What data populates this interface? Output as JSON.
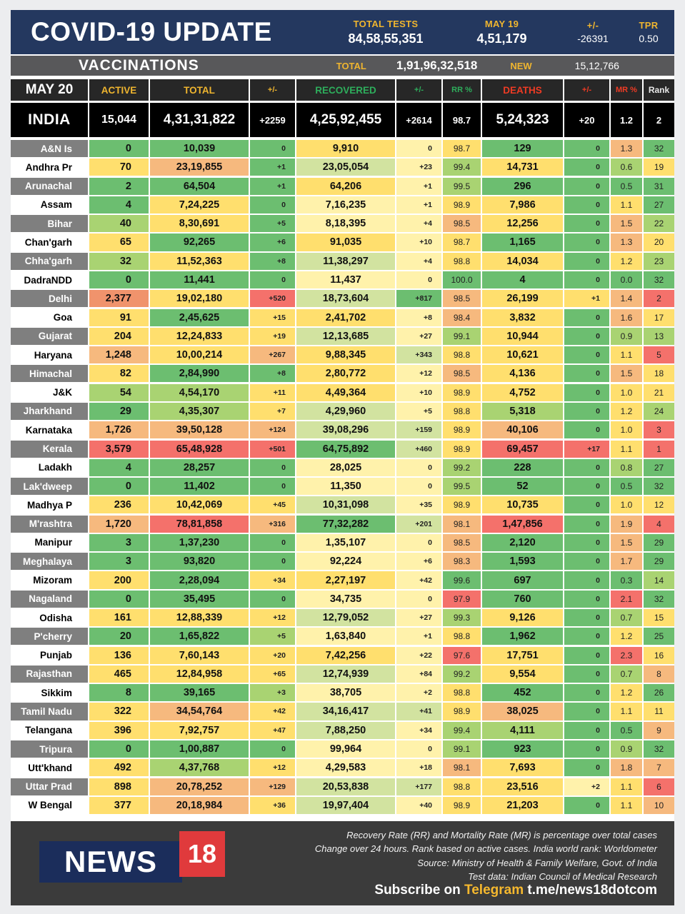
{
  "banner": {
    "title": "COVID-19 UPDATE",
    "stats": [
      {
        "label": "TOTAL TESTS",
        "value": "84,58,55,351"
      },
      {
        "label": "MAY 19",
        "value": "4,51,179"
      },
      {
        "label": "+/-",
        "value": "-26391"
      },
      {
        "label": "TPR",
        "value": "0.50"
      }
    ]
  },
  "vaccinations": {
    "title": "VACCINATIONS",
    "total_label": "TOTAL",
    "total_value": "1,91,96,32,518",
    "new_label": "NEW",
    "new_value": "15,12,766"
  },
  "chart_data": {
    "type": "table",
    "title": "COVID-19 UPDATE",
    "date_label": "MAY 20",
    "columns": [
      "MAY 20",
      "ACTIVE",
      "TOTAL",
      "+/-",
      "RECOVERED",
      "+/-",
      "RR %",
      "DEATHS",
      "+/-",
      "MR %",
      "Rank"
    ],
    "india_row": [
      "INDIA",
      "15,044",
      "4,31,31,822",
      "+2259",
      "4,25,92,455",
      "+2614",
      "98.7",
      "5,24,323",
      "+20",
      "1.2",
      "2"
    ],
    "rows": [
      [
        "A&N Is",
        "0",
        "10,039",
        "0",
        "9,910",
        "0",
        "98.7",
        "129",
        "0",
        "1.3",
        "32"
      ],
      [
        "Andhra Pr",
        "70",
        "23,19,855",
        "+1",
        "23,05,054",
        "+23",
        "99.4",
        "14,731",
        "0",
        "0.6",
        "19"
      ],
      [
        "Arunachal",
        "2",
        "64,504",
        "+1",
        "64,206",
        "+1",
        "99.5",
        "296",
        "0",
        "0.5",
        "31"
      ],
      [
        "Assam",
        "4",
        "7,24,225",
        "0",
        "7,16,235",
        "+1",
        "98.9",
        "7,986",
        "0",
        "1.1",
        "27"
      ],
      [
        "Bihar",
        "40",
        "8,30,691",
        "+5",
        "8,18,395",
        "+4",
        "98.5",
        "12,256",
        "0",
        "1.5",
        "22"
      ],
      [
        "Chan'garh",
        "65",
        "92,265",
        "+6",
        "91,035",
        "+10",
        "98.7",
        "1,165",
        "0",
        "1.3",
        "20"
      ],
      [
        "Chha'garh",
        "32",
        "11,52,363",
        "+8",
        "11,38,297",
        "+4",
        "98.8",
        "14,034",
        "0",
        "1.2",
        "23"
      ],
      [
        "DadraNDD",
        "0",
        "11,441",
        "0",
        "11,437",
        "0",
        "100.0",
        "4",
        "0",
        "0.0",
        "32"
      ],
      [
        "Delhi",
        "2,377",
        "19,02,180",
        "+520",
        "18,73,604",
        "+817",
        "98.5",
        "26,199",
        "+1",
        "1.4",
        "2"
      ],
      [
        "Goa",
        "91",
        "2,45,625",
        "+15",
        "2,41,702",
        "+8",
        "98.4",
        "3,832",
        "0",
        "1.6",
        "17"
      ],
      [
        "Gujarat",
        "204",
        "12,24,833",
        "+19",
        "12,13,685",
        "+27",
        "99.1",
        "10,944",
        "0",
        "0.9",
        "13"
      ],
      [
        "Haryana",
        "1,248",
        "10,00,214",
        "+267",
        "9,88,345",
        "+343",
        "98.8",
        "10,621",
        "0",
        "1.1",
        "5"
      ],
      [
        "Himachal",
        "82",
        "2,84,990",
        "+8",
        "2,80,772",
        "+12",
        "98.5",
        "4,136",
        "0",
        "1.5",
        "18"
      ],
      [
        "J&K",
        "54",
        "4,54,170",
        "+11",
        "4,49,364",
        "+10",
        "98.9",
        "4,752",
        "0",
        "1.0",
        "21"
      ],
      [
        "Jharkhand",
        "29",
        "4,35,307",
        "+7",
        "4,29,960",
        "+5",
        "98.8",
        "5,318",
        "0",
        "1.2",
        "24"
      ],
      [
        "Karnataka",
        "1,726",
        "39,50,128",
        "+124",
        "39,08,296",
        "+159",
        "98.9",
        "40,106",
        "0",
        "1.0",
        "3"
      ],
      [
        "Kerala",
        "3,579",
        "65,48,928",
        "+501",
        "64,75,892",
        "+460",
        "98.9",
        "69,457",
        "+17",
        "1.1",
        "1"
      ],
      [
        "Ladakh",
        "4",
        "28,257",
        "0",
        "28,025",
        "0",
        "99.2",
        "228",
        "0",
        "0.8",
        "27"
      ],
      [
        "Lak'dweep",
        "0",
        "11,402",
        "0",
        "11,350",
        "0",
        "99.5",
        "52",
        "0",
        "0.5",
        "32"
      ],
      [
        "Madhya P",
        "236",
        "10,42,069",
        "+45",
        "10,31,098",
        "+35",
        "98.9",
        "10,735",
        "0",
        "1.0",
        "12"
      ],
      [
        "M'rashtra",
        "1,720",
        "78,81,858",
        "+316",
        "77,32,282",
        "+201",
        "98.1",
        "1,47,856",
        "0",
        "1.9",
        "4"
      ],
      [
        "Manipur",
        "3",
        "1,37,230",
        "0",
        "1,35,107",
        "0",
        "98.5",
        "2,120",
        "0",
        "1.5",
        "29"
      ],
      [
        "Meghalaya",
        "3",
        "93,820",
        "0",
        "92,224",
        "+6",
        "98.3",
        "1,593",
        "0",
        "1.7",
        "29"
      ],
      [
        "Mizoram",
        "200",
        "2,28,094",
        "+34",
        "2,27,197",
        "+42",
        "99.6",
        "697",
        "0",
        "0.3",
        "14"
      ],
      [
        "Nagaland",
        "0",
        "35,495",
        "0",
        "34,735",
        "0",
        "97.9",
        "760",
        "0",
        "2.1",
        "32"
      ],
      [
        "Odisha",
        "161",
        "12,88,339",
        "+12",
        "12,79,052",
        "+27",
        "99.3",
        "9,126",
        "0",
        "0.7",
        "15"
      ],
      [
        "P'cherry",
        "20",
        "1,65,822",
        "+5",
        "1,63,840",
        "+1",
        "98.8",
        "1,962",
        "0",
        "1.2",
        "25"
      ],
      [
        "Punjab",
        "136",
        "7,60,143",
        "+20",
        "7,42,256",
        "+22",
        "97.6",
        "17,751",
        "0",
        "2.3",
        "16"
      ],
      [
        "Rajasthan",
        "465",
        "12,84,958",
        "+65",
        "12,74,939",
        "+84",
        "99.2",
        "9,554",
        "0",
        "0.7",
        "8"
      ],
      [
        "Sikkim",
        "8",
        "39,165",
        "+3",
        "38,705",
        "+2",
        "98.8",
        "452",
        "0",
        "1.2",
        "26"
      ],
      [
        "Tamil Nadu",
        "322",
        "34,54,764",
        "+42",
        "34,16,417",
        "+41",
        "98.9",
        "38,025",
        "0",
        "1.1",
        "11"
      ],
      [
        "Telangana",
        "396",
        "7,92,757",
        "+47",
        "7,88,250",
        "+34",
        "99.4",
        "4,111",
        "0",
        "0.5",
        "9"
      ],
      [
        "Tripura",
        "0",
        "1,00,887",
        "0",
        "99,964",
        "0",
        "99.1",
        "923",
        "0",
        "0.9",
        "32"
      ],
      [
        "Utt'khand",
        "492",
        "4,37,768",
        "+12",
        "4,29,583",
        "+18",
        "98.1",
        "7,693",
        "0",
        "1.8",
        "7"
      ],
      [
        "Uttar Prad",
        "898",
        "20,78,252",
        "+129",
        "20,53,838",
        "+177",
        "98.8",
        "23,516",
        "+2",
        "1.1",
        "6"
      ],
      [
        "W Bengal",
        "377",
        "20,18,984",
        "+36",
        "19,97,404",
        "+40",
        "98.9",
        "21,203",
        "0",
        "1.1",
        "10"
      ]
    ]
  },
  "table": {
    "palette": {
      "g": "#6CBE70",
      "yg": "#A9D372",
      "pg": "#D2E3A0",
      "y": "#FFDF6E",
      "ly": "#FFF2AB",
      "o": "#F6B97E",
      "so": "#F0936C",
      "r": "#F4716B"
    },
    "label_gray": "#7F7F7F",
    "cell_colors": [
      [
        "g",
        "g",
        "g",
        "y",
        "ly",
        "y",
        "g",
        "g",
        "o",
        "g"
      ],
      [
        "y",
        "o",
        "g",
        "pg",
        "ly",
        "yg",
        "y",
        "g",
        "yg",
        "y"
      ],
      [
        "g",
        "g",
        "g",
        "y",
        "ly",
        "yg",
        "g",
        "g",
        "g",
        "g"
      ],
      [
        "g",
        "y",
        "g",
        "ly",
        "ly",
        "y",
        "y",
        "g",
        "y",
        "g"
      ],
      [
        "yg",
        "y",
        "g",
        "ly",
        "ly",
        "o",
        "y",
        "g",
        "o",
        "yg"
      ],
      [
        "y",
        "g",
        "g",
        "y",
        "ly",
        "y",
        "g",
        "g",
        "o",
        "y"
      ],
      [
        "yg",
        "y",
        "g",
        "pg",
        "ly",
        "y",
        "y",
        "g",
        "y",
        "yg"
      ],
      [
        "g",
        "g",
        "g",
        "ly",
        "ly",
        "g",
        "g",
        "g",
        "g",
        "g"
      ],
      [
        "so",
        "y",
        "r",
        "pg",
        "g",
        "o",
        "y",
        "y",
        "o",
        "r"
      ],
      [
        "y",
        "g",
        "y",
        "y",
        "ly",
        "o",
        "y",
        "g",
        "o",
        "y"
      ],
      [
        "y",
        "y",
        "y",
        "pg",
        "ly",
        "yg",
        "y",
        "g",
        "yg",
        "yg"
      ],
      [
        "o",
        "y",
        "o",
        "y",
        "pg",
        "y",
        "y",
        "g",
        "y",
        "r"
      ],
      [
        "y",
        "g",
        "g",
        "y",
        "ly",
        "o",
        "y",
        "g",
        "o",
        "y"
      ],
      [
        "yg",
        "yg",
        "y",
        "y",
        "ly",
        "y",
        "y",
        "g",
        "y",
        "y"
      ],
      [
        "g",
        "yg",
        "y",
        "pg",
        "ly",
        "y",
        "yg",
        "g",
        "y",
        "yg"
      ],
      [
        "o",
        "o",
        "o",
        "pg",
        "pg",
        "y",
        "o",
        "g",
        "y",
        "r"
      ],
      [
        "r",
        "r",
        "r",
        "g",
        "pg",
        "y",
        "r",
        "r",
        "y",
        "r"
      ],
      [
        "g",
        "g",
        "g",
        "ly",
        "ly",
        "yg",
        "g",
        "g",
        "yg",
        "g"
      ],
      [
        "g",
        "g",
        "g",
        "ly",
        "ly",
        "yg",
        "g",
        "g",
        "g",
        "g"
      ],
      [
        "y",
        "y",
        "y",
        "pg",
        "ly",
        "y",
        "y",
        "g",
        "y",
        "y"
      ],
      [
        "o",
        "r",
        "o",
        "g",
        "pg",
        "o",
        "r",
        "g",
        "o",
        "r"
      ],
      [
        "g",
        "g",
        "g",
        "ly",
        "ly",
        "o",
        "g",
        "g",
        "o",
        "g"
      ],
      [
        "g",
        "g",
        "g",
        "ly",
        "ly",
        "o",
        "g",
        "g",
        "o",
        "g"
      ],
      [
        "y",
        "g",
        "y",
        "y",
        "ly",
        "g",
        "g",
        "g",
        "g",
        "yg"
      ],
      [
        "g",
        "g",
        "g",
        "ly",
        "ly",
        "r",
        "g",
        "g",
        "r",
        "g"
      ],
      [
        "y",
        "y",
        "y",
        "pg",
        "ly",
        "yg",
        "y",
        "g",
        "yg",
        "y"
      ],
      [
        "g",
        "g",
        "yg",
        "ly",
        "ly",
        "y",
        "g",
        "g",
        "y",
        "g"
      ],
      [
        "y",
        "y",
        "y",
        "y",
        "ly",
        "r",
        "y",
        "g",
        "r",
        "y"
      ],
      [
        "y",
        "y",
        "y",
        "pg",
        "ly",
        "yg",
        "y",
        "g",
        "yg",
        "o"
      ],
      [
        "g",
        "g",
        "yg",
        "ly",
        "ly",
        "y",
        "g",
        "g",
        "y",
        "g"
      ],
      [
        "y",
        "o",
        "y",
        "pg",
        "pg",
        "y",
        "o",
        "g",
        "y",
        "y"
      ],
      [
        "y",
        "y",
        "y",
        "pg",
        "ly",
        "yg",
        "yg",
        "g",
        "g",
        "o"
      ],
      [
        "g",
        "g",
        "g",
        "ly",
        "ly",
        "yg",
        "g",
        "g",
        "yg",
        "g"
      ],
      [
        "y",
        "yg",
        "y",
        "ly",
        "ly",
        "o",
        "y",
        "g",
        "o",
        "o"
      ],
      [
        "y",
        "o",
        "o",
        "pg",
        "pg",
        "y",
        "y",
        "ly",
        "y",
        "r"
      ],
      [
        "y",
        "o",
        "y",
        "pg",
        "ly",
        "y",
        "y",
        "g",
        "y",
        "o"
      ]
    ]
  },
  "footer": {
    "logo_news": "NEWS",
    "logo_18": "18",
    "notes": [
      "Recovery Rate (RR) and Mortality Rate (MR) is percentage over total cases",
      "Change over 24 hours. Rank based on active cases. India world rank: Worldometer",
      "Source: Ministry of Health & Family Welfare, Govt. of India",
      "Test data: Indian Council of Medical Research"
    ],
    "subscribe_prefix": "Subscribe on ",
    "subscribe_telegram": "Telegram",
    "subscribe_handle": " t.me/news18dotcom"
  }
}
